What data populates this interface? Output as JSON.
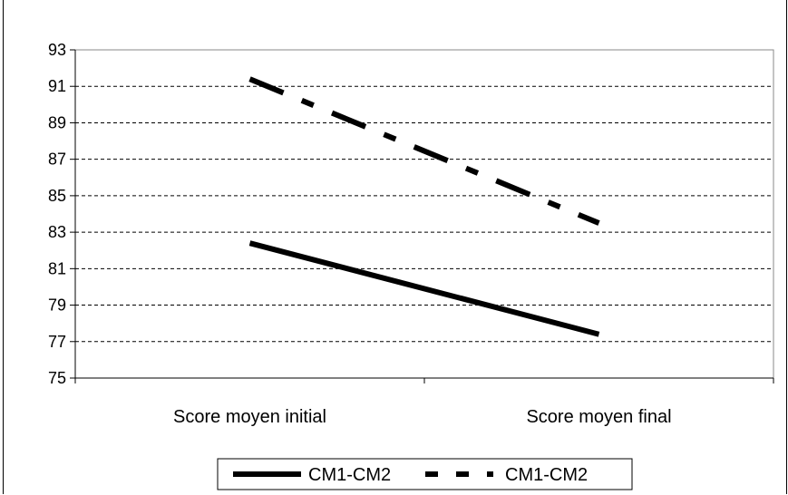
{
  "chart_data": {
    "type": "line",
    "title": "",
    "xlabel": "",
    "ylabel": "",
    "categories": [
      "Score moyen initial",
      "Score moyen final"
    ],
    "ylim": [
      75,
      93
    ],
    "yticks": [
      75,
      77,
      79,
      81,
      83,
      85,
      87,
      89,
      91,
      93
    ],
    "grid": "horizontal dashed",
    "legend_position": "bottom",
    "series": [
      {
        "name": "CM1-CM2",
        "values": [
          82.4,
          77.4
        ],
        "style": "solid",
        "color": "#000000"
      },
      {
        "name": "CM1-CM2",
        "values": [
          91.4,
          83.5
        ],
        "style": "dash-dot",
        "color": "#000000"
      }
    ]
  }
}
